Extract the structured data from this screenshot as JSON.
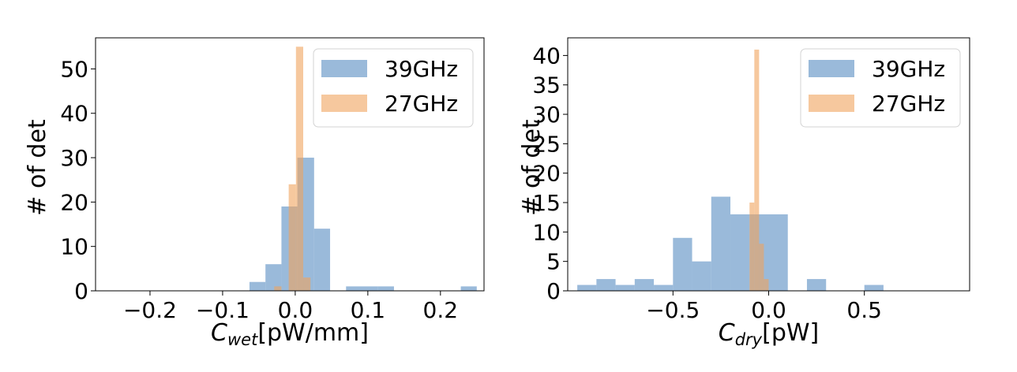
{
  "colors": {
    "39GHz": "#6f9ccb",
    "27GHz": "#f0a35e"
  },
  "chart_data": [
    {
      "type": "histogram",
      "xlabel_main": "C",
      "xlabel_sub": "wet",
      "xlabel_unit": "[pW/mm]",
      "ylabel": "# of det",
      "xlim": [
        -0.275,
        0.26
      ],
      "ylim": [
        0,
        57
      ],
      "xticks": [
        -0.2,
        -0.1,
        0.0,
        0.1,
        0.2
      ],
      "xticklabels": [
        "−0.2",
        "−0.1",
        "0.0",
        "0.1",
        "0.2"
      ],
      "yticks": [
        0,
        10,
        20,
        30,
        40,
        50
      ],
      "yticklabels": [
        "0",
        "10",
        "20",
        "30",
        "40",
        "50"
      ],
      "legend": {
        "loc": "upper right",
        "entries": [
          "39GHz",
          "27GHz"
        ]
      },
      "series": [
        {
          "name": "39GHz",
          "alpha": 0.7,
          "bins": [
            {
              "x0": -0.063,
              "x1": -0.041,
              "v": 2
            },
            {
              "x0": -0.041,
              "x1": -0.019,
              "v": 6
            },
            {
              "x0": -0.019,
              "x1": 0.003,
              "v": 19
            },
            {
              "x0": 0.003,
              "x1": 0.026,
              "v": 30
            },
            {
              "x0": 0.026,
              "x1": 0.048,
              "v": 14
            },
            {
              "x0": 0.048,
              "x1": 0.07,
              "v": 0
            },
            {
              "x0": 0.07,
              "x1": 0.092,
              "v": 1
            },
            {
              "x0": 0.092,
              "x1": 0.114,
              "v": 1
            },
            {
              "x0": 0.114,
              "x1": 0.136,
              "v": 1
            },
            {
              "x0": 0.228,
              "x1": 0.25,
              "v": 1
            }
          ]
        },
        {
          "name": "27GHz",
          "alpha": 0.6,
          "bins": [
            {
              "x0": -0.029,
              "x1": -0.019,
              "v": 1
            },
            {
              "x0": -0.009,
              "x1": 0.001,
              "v": 24
            },
            {
              "x0": 0.001,
              "x1": 0.011,
              "v": 55
            },
            {
              "x0": 0.011,
              "x1": 0.021,
              "v": 3
            }
          ]
        }
      ]
    },
    {
      "type": "histogram",
      "xlabel_main": "C",
      "xlabel_sub": "dry",
      "xlabel_unit": "[pW]",
      "ylabel": "# of det",
      "xlim": [
        -1.05,
        1.05
      ],
      "ylim": [
        0,
        43
      ],
      "xticks": [
        -0.5,
        0.0,
        0.5
      ],
      "xticklabels": [
        "−0.5",
        "0.0",
        "0.5"
      ],
      "yticks": [
        0,
        5,
        10,
        15,
        20,
        25,
        30,
        35,
        40
      ],
      "yticklabels": [
        "0",
        "5",
        "10",
        "15",
        "20",
        "25",
        "30",
        "35",
        "40"
      ],
      "legend": {
        "loc": "upper right",
        "entries": [
          "39GHz",
          "27GHz"
        ]
      },
      "series": [
        {
          "name": "39GHz",
          "alpha": 0.7,
          "bins": [
            {
              "x0": -1.0,
              "x1": -0.9,
              "v": 1
            },
            {
              "x0": -0.9,
              "x1": -0.8,
              "v": 2
            },
            {
              "x0": -0.8,
              "x1": -0.7,
              "v": 1
            },
            {
              "x0": -0.7,
              "x1": -0.6,
              "v": 2
            },
            {
              "x0": -0.6,
              "x1": -0.5,
              "v": 1
            },
            {
              "x0": -0.5,
              "x1": -0.4,
              "v": 9
            },
            {
              "x0": -0.4,
              "x1": -0.3,
              "v": 5
            },
            {
              "x0": -0.3,
              "x1": -0.2,
              "v": 16
            },
            {
              "x0": -0.2,
              "x1": -0.1,
              "v": 13
            },
            {
              "x0": -0.1,
              "x1": 0.0,
              "v": 13
            },
            {
              "x0": 0.0,
              "x1": 0.1,
              "v": 13
            },
            {
              "x0": 0.1,
              "x1": 0.2,
              "v": 0
            },
            {
              "x0": 0.2,
              "x1": 0.3,
              "v": 2
            },
            {
              "x0": 0.5,
              "x1": 0.6,
              "v": 1
            }
          ]
        },
        {
          "name": "27GHz",
          "alpha": 0.6,
          "bins": [
            {
              "x0": -0.1,
              "x1": -0.075,
              "v": 15
            },
            {
              "x0": -0.075,
              "x1": -0.05,
              "v": 41
            },
            {
              "x0": -0.05,
              "x1": -0.025,
              "v": 8
            },
            {
              "x0": -0.025,
              "x1": 0.0,
              "v": 2
            }
          ]
        }
      ]
    }
  ]
}
